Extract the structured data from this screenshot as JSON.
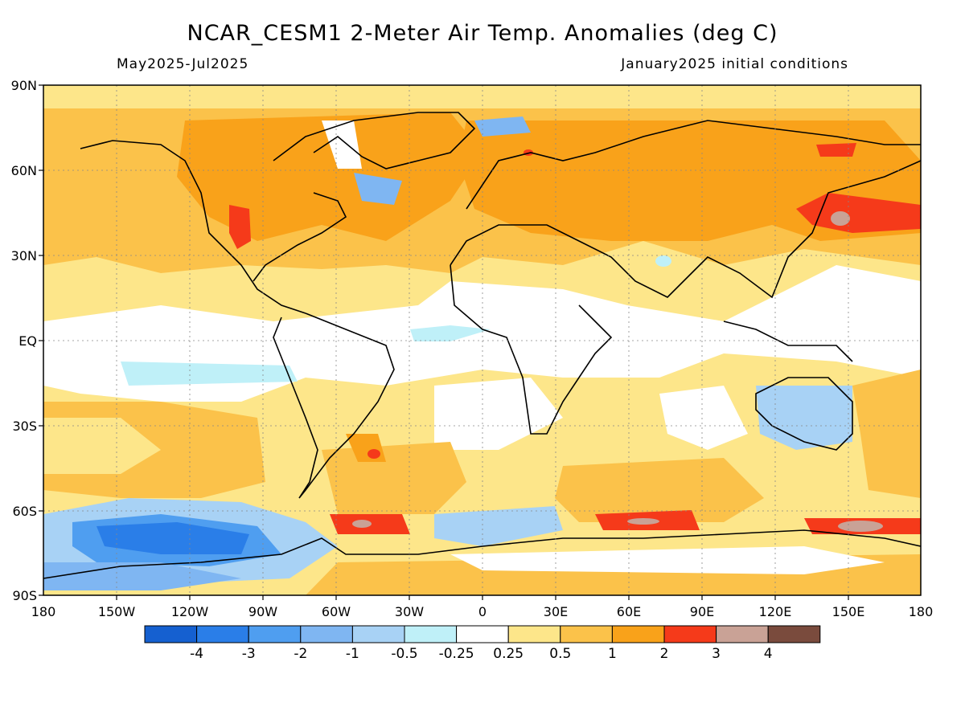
{
  "header": {
    "title": "NCAR_CESM1 2-Meter Air Temp. Anomalies (deg C)",
    "period": "May2025-Jul2025",
    "initial_conditions": "January2025 initial conditions"
  },
  "axes": {
    "lat_labels": [
      "90N",
      "60N",
      "30N",
      "EQ",
      "30S",
      "60S",
      "90S"
    ],
    "lon_labels": [
      "180",
      "150W",
      "120W",
      "90W",
      "60W",
      "30W",
      "0",
      "30E",
      "60E",
      "90E",
      "120E",
      "150E",
      "180"
    ]
  },
  "colorbar": {
    "colors": [
      "#1560d0",
      "#2a7ee8",
      "#4f9ef0",
      "#7fb6f2",
      "#a8d2f5",
      "#bff0f8",
      "#ffffff",
      "#fde68a",
      "#fbc24a",
      "#f9a21a",
      "#f53a1a",
      "#c9a296",
      "#7a4b3d"
    ],
    "labels": [
      "-4",
      "-3",
      "-2",
      "-1",
      "-0.5",
      "-0.25",
      "0.25",
      "0.5",
      "1",
      "2",
      "3",
      "4"
    ]
  }
}
